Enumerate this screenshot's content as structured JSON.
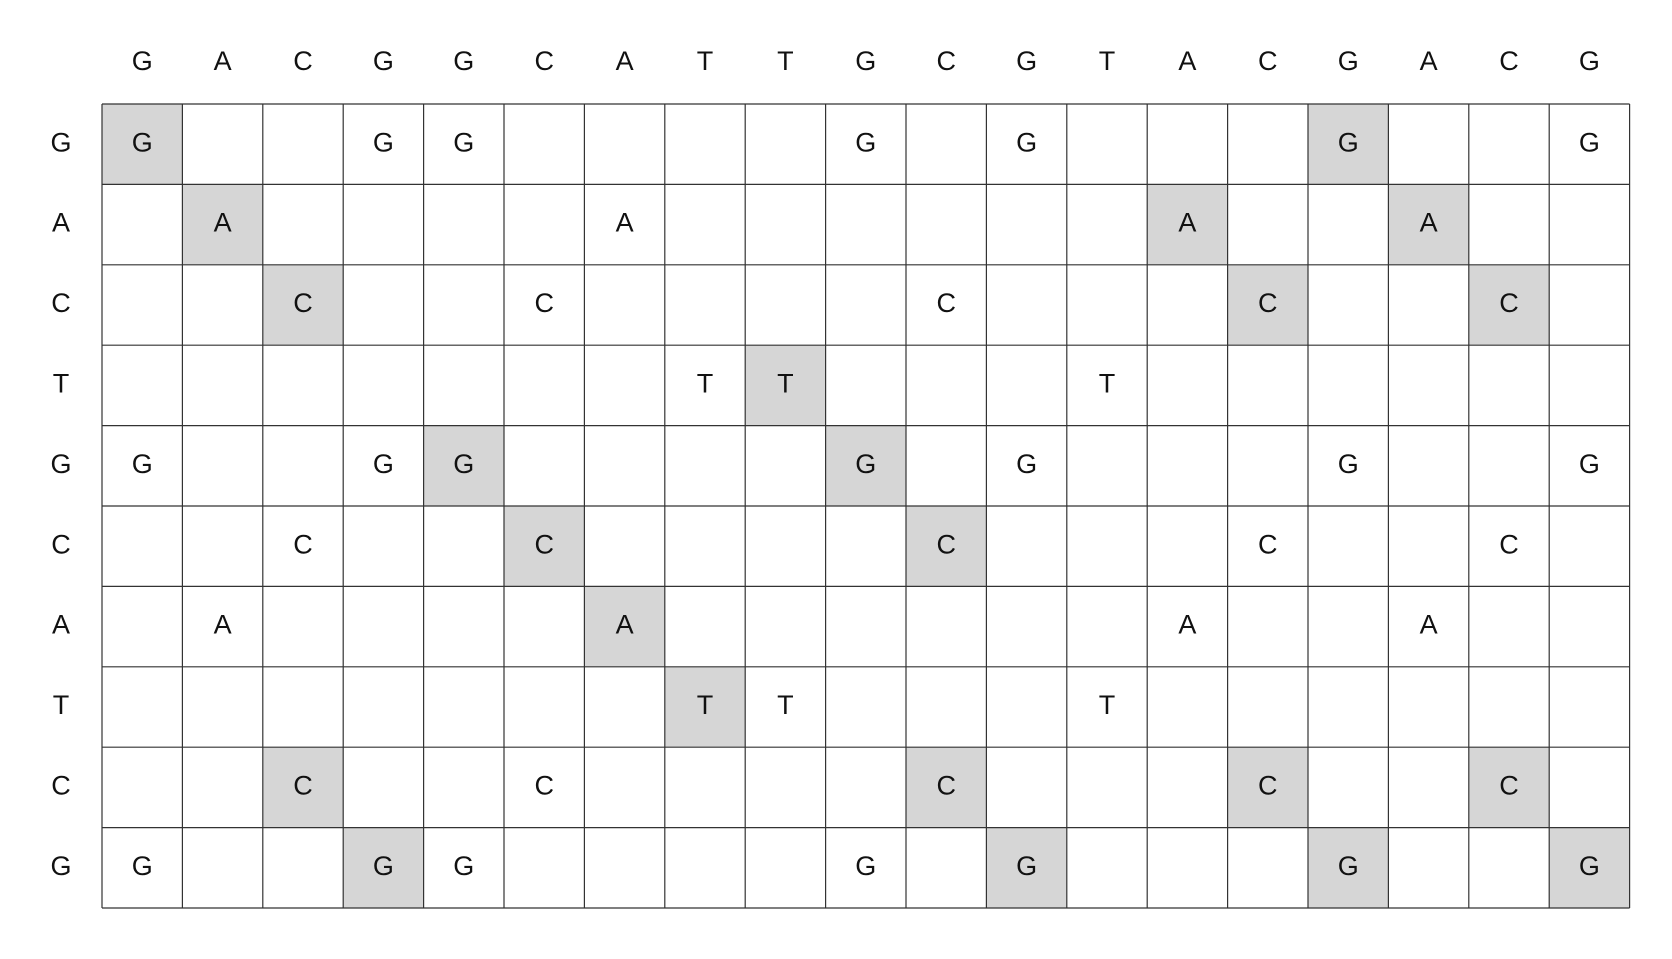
{
  "columns": [
    "G",
    "A",
    "C",
    "G",
    "G",
    "C",
    "A",
    "T",
    "T",
    "G",
    "C",
    "G",
    "T",
    "A",
    "C",
    "G",
    "A",
    "C",
    "G"
  ],
  "rows": [
    {
      "label": "G",
      "cells": [
        "G",
        null,
        null,
        "G",
        "G",
        null,
        null,
        null,
        null,
        "G",
        null,
        "G",
        null,
        null,
        null,
        "G",
        null,
        null,
        "G"
      ],
      "highlighted": [
        0,
        15
      ]
    },
    {
      "label": "A",
      "cells": [
        null,
        "A",
        null,
        null,
        null,
        null,
        "A",
        null,
        null,
        null,
        null,
        null,
        null,
        "A",
        null,
        null,
        "A",
        null,
        null
      ],
      "highlighted": [
        1,
        13,
        16
      ]
    },
    {
      "label": "C",
      "cells": [
        null,
        null,
        "C",
        null,
        null,
        "C",
        null,
        null,
        null,
        null,
        "C",
        null,
        null,
        null,
        "C",
        null,
        null,
        "C",
        null
      ],
      "highlighted": [
        2,
        14,
        17
      ]
    },
    {
      "label": "T",
      "cells": [
        null,
        null,
        null,
        null,
        null,
        null,
        null,
        "T",
        "T",
        null,
        null,
        null,
        "T",
        null,
        null,
        null,
        null,
        null,
        null
      ],
      "highlighted": [
        8
      ]
    },
    {
      "label": "G",
      "cells": [
        "G",
        null,
        null,
        "G",
        "G",
        null,
        null,
        null,
        null,
        "G",
        null,
        "G",
        null,
        null,
        null,
        "G",
        null,
        null,
        "G"
      ],
      "highlighted": [
        4,
        9
      ]
    },
    {
      "label": "C",
      "cells": [
        null,
        null,
        "C",
        null,
        null,
        "C",
        null,
        null,
        null,
        null,
        "C",
        null,
        null,
        null,
        "C",
        null,
        null,
        "C",
        null
      ],
      "highlighted": [
        5,
        10
      ]
    },
    {
      "label": "A",
      "cells": [
        null,
        "A",
        null,
        null,
        null,
        null,
        "A",
        null,
        null,
        null,
        null,
        null,
        null,
        "A",
        null,
        null,
        "A",
        null,
        null
      ],
      "highlighted": [
        6
      ]
    },
    {
      "label": "T",
      "cells": [
        null,
        null,
        null,
        null,
        null,
        null,
        null,
        "T",
        "T",
        null,
        null,
        null,
        "T",
        null,
        null,
        null,
        null,
        null,
        null
      ],
      "highlighted": [
        7
      ]
    },
    {
      "label": "C",
      "cells": [
        null,
        null,
        "C",
        null,
        null,
        "C",
        null,
        null,
        null,
        null,
        "C",
        null,
        null,
        null,
        "C",
        null,
        null,
        "C",
        null
      ],
      "highlighted": [
        2,
        10,
        14,
        17
      ]
    },
    {
      "label": "G",
      "cells": [
        "G",
        null,
        null,
        "G",
        "G",
        null,
        null,
        null,
        null,
        "G",
        null,
        "G",
        null,
        null,
        null,
        "G",
        null,
        null,
        "G"
      ],
      "highlighted": [
        3,
        11,
        15,
        18
      ]
    }
  ]
}
